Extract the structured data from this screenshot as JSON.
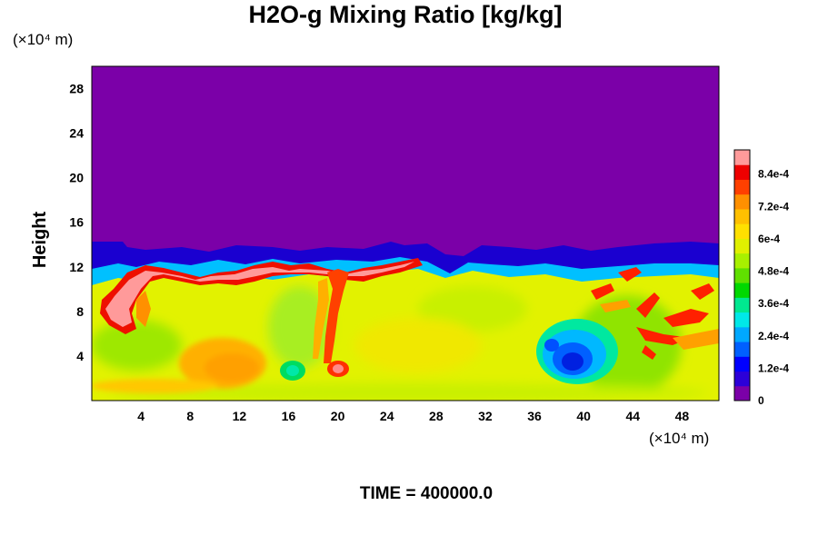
{
  "chart_data": {
    "type": "heatmap",
    "title": "H2O-g Mixing Ratio [kg/kg]",
    "ylabel": "Height",
    "y_unit": "(×10⁴ m)",
    "x_unit": "(×10⁴ m)",
    "xlim": [
      0,
      51
    ],
    "ylim": [
      0,
      30
    ],
    "x_ticks": [
      "4",
      "8",
      "12",
      "16",
      "20",
      "24",
      "28",
      "32",
      "36",
      "40",
      "44",
      "48"
    ],
    "y_ticks": [
      "4",
      "8",
      "12",
      "16",
      "20",
      "24",
      "28"
    ],
    "time_label": "TIME = 400000.0",
    "colorbar": {
      "min": 0,
      "max": 0.00093,
      "tick_labels": [
        "0",
        "1.2e-4",
        "2.4e-4",
        "3.6e-4",
        "4.8e-4",
        "6e-4",
        "7.2e-4",
        "8.4e-4"
      ],
      "tick_values": [
        0,
        0.00012,
        0.00024,
        0.00036,
        0.00048,
        0.0006,
        0.00072,
        0.00084
      ],
      "colors": [
        "#7b00a8",
        "#2c00d8",
        "#0000ff",
        "#0060ff",
        "#00a8ff",
        "#00e8e8",
        "#00e890",
        "#00d800",
        "#60e000",
        "#a8f000",
        "#e0f000",
        "#ffe000",
        "#ffc000",
        "#ff9000",
        "#ff4000",
        "#ee0000",
        "#ff9a9a"
      ]
    },
    "field_summary": {
      "upper_dry_region_top": 30,
      "moist_layer_top_approx": 13,
      "moist_interior_value": 0.00062,
      "features": [
        {
          "x": 10.5,
          "y": 3,
          "value": 0.0007
        },
        {
          "x": 16,
          "y": 2.5,
          "value": 0.0004
        },
        {
          "x": 20,
          "y": 2.5,
          "value": 0.00085
        },
        {
          "x": 39,
          "y": 3.5,
          "value": 0.00012
        },
        {
          "x": 3,
          "y": 7.5,
          "value": 0.0009
        },
        {
          "x": 14,
          "y": 11.5,
          "value": 0.00088
        },
        {
          "x": 24,
          "y": 11.5,
          "value": 0.00086
        }
      ]
    }
  }
}
